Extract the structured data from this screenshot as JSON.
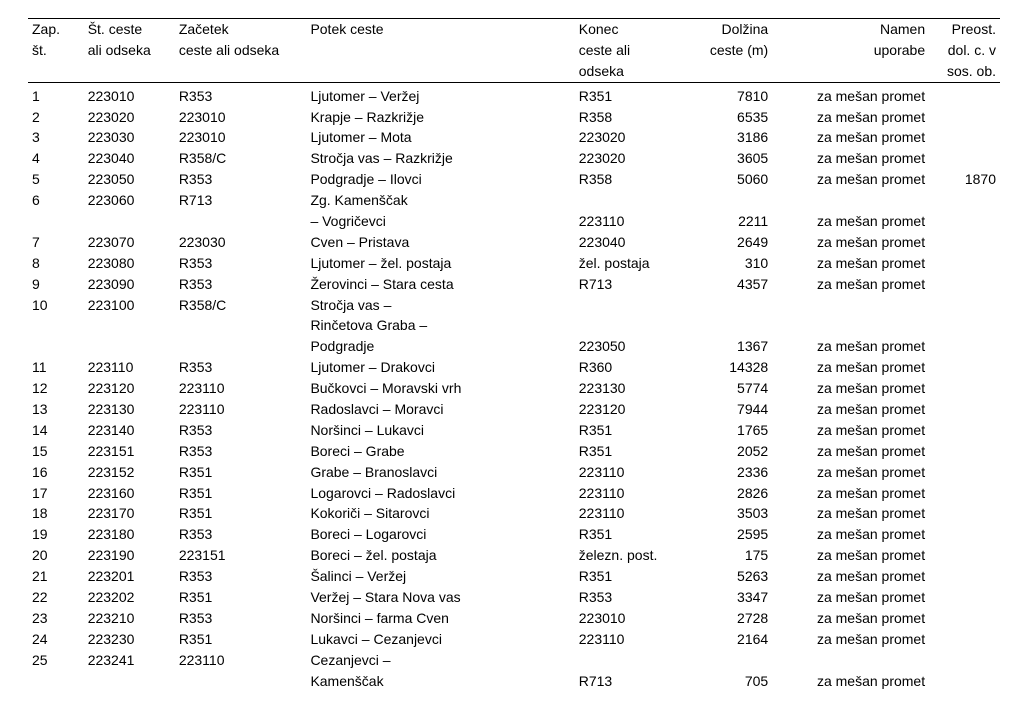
{
  "columns": {
    "c1": [
      "Zap.",
      "št."
    ],
    "c2": [
      "Št. ceste",
      "ali odseka"
    ],
    "c3": [
      "Začetek",
      "ceste ali odseka"
    ],
    "c4": [
      "Potek ceste",
      ""
    ],
    "c5": [
      "Konec",
      "ceste ali",
      "odseka"
    ],
    "c6": [
      "Dolžina",
      "ceste (m)"
    ],
    "c7": [
      "Namen",
      "uporabe"
    ],
    "c8": [
      "Preost.",
      "dol. c. v",
      "sos. ob."
    ]
  },
  "rows": [
    {
      "n": "1",
      "code": "223010",
      "start": "R353",
      "route": "Ljutomer – Veržej",
      "end": "R351",
      "len": "7810",
      "use": "za mešan promet",
      "rem": ""
    },
    {
      "n": "2",
      "code": "223020",
      "start": "223010",
      "route": "Krapje – Razkrižje",
      "end": "R358",
      "len": "6535",
      "use": "za mešan promet",
      "rem": ""
    },
    {
      "n": "3",
      "code": "223030",
      "start": "223010",
      "route": "Ljutomer – Mota",
      "end": "223020",
      "len": "3186",
      "use": "za mešan promet",
      "rem": ""
    },
    {
      "n": "4",
      "code": "223040",
      "start": "R358/C",
      "route": "Stročja vas – Razkrižje",
      "end": "223020",
      "len": "3605",
      "use": "za mešan promet",
      "rem": ""
    },
    {
      "n": "5",
      "code": "223050",
      "start": "R353",
      "route": "Podgradje – Ilovci",
      "end": "R358",
      "len": "5060",
      "use": "za mešan promet",
      "rem": "1870"
    },
    {
      "n": "6",
      "code": "223060",
      "start": "R713",
      "route": "Zg. Kamenščak\n– Vogričevci",
      "end": "223110",
      "len": "2211",
      "use": "za mešan promet",
      "rem": ""
    },
    {
      "n": "7",
      "code": "223070",
      "start": "223030",
      "route": "Cven – Pristava",
      "end": "223040",
      "len": "2649",
      "use": "za mešan promet",
      "rem": ""
    },
    {
      "n": "8",
      "code": "223080",
      "start": "R353",
      "route": "Ljutomer – žel. postaja",
      "end": "žel. postaja",
      "len": "310",
      "use": "za mešan promet",
      "rem": ""
    },
    {
      "n": "9",
      "code": "223090",
      "start": "R353",
      "route": "Žerovinci – Stara cesta",
      "end": "R713",
      "len": "4357",
      "use": "za mešan promet",
      "rem": ""
    },
    {
      "n": "10",
      "code": "223100",
      "start": "R358/C",
      "route": "Stročja vas –\nRinčetova Graba –\nPodgradje",
      "end": "223050",
      "len": "1367",
      "use": "za mešan promet",
      "rem": ""
    },
    {
      "n": "11",
      "code": "223110",
      "start": "R353",
      "route": "Ljutomer – Drakovci",
      "end": "R360",
      "len": "14328",
      "use": "za mešan promet",
      "rem": ""
    },
    {
      "n": "12",
      "code": "223120",
      "start": "223110",
      "route": "Bučkovci – Moravski vrh",
      "end": "223130",
      "len": "5774",
      "use": "za mešan promet",
      "rem": ""
    },
    {
      "n": "13",
      "code": "223130",
      "start": "223110",
      "route": "Radoslavci – Moravci",
      "end": "223120",
      "len": "7944",
      "use": "za mešan promet",
      "rem": ""
    },
    {
      "n": "14",
      "code": "223140",
      "start": "R353",
      "route": "Noršinci – Lukavci",
      "end": "R351",
      "len": "1765",
      "use": "za mešan promet",
      "rem": ""
    },
    {
      "n": "15",
      "code": "223151",
      "start": "R353",
      "route": "Boreci – Grabe",
      "end": "R351",
      "len": "2052",
      "use": "za mešan promet",
      "rem": ""
    },
    {
      "n": "16",
      "code": "223152",
      "start": "R351",
      "route": "Grabe – Branoslavci",
      "end": "223110",
      "len": "2336",
      "use": "za mešan promet",
      "rem": ""
    },
    {
      "n": "17",
      "code": "223160",
      "start": "R351",
      "route": "Logarovci – Radoslavci",
      "end": "223110",
      "len": "2826",
      "use": "za mešan promet",
      "rem": ""
    },
    {
      "n": "18",
      "code": "223170",
      "start": "R351",
      "route": "Kokoriči – Sitarovci",
      "end": "223110",
      "len": "3503",
      "use": "za mešan promet",
      "rem": ""
    },
    {
      "n": "19",
      "code": "223180",
      "start": "R353",
      "route": "Boreci – Logarovci",
      "end": "R351",
      "len": "2595",
      "use": "za mešan promet",
      "rem": ""
    },
    {
      "n": "20",
      "code": "223190",
      "start": "223151",
      "route": "Boreci – žel. postaja",
      "end": "železn. post.",
      "len": "175",
      "use": "za mešan promet",
      "rem": ""
    },
    {
      "n": "21",
      "code": "223201",
      "start": "R353",
      "route": "Šalinci – Veržej",
      "end": "R351",
      "len": "5263",
      "use": "za mešan promet",
      "rem": ""
    },
    {
      "n": "22",
      "code": "223202",
      "start": "R351",
      "route": "Veržej – Stara Nova vas",
      "end": "R353",
      "len": "3347",
      "use": "za mešan promet",
      "rem": ""
    },
    {
      "n": "23",
      "code": "223210",
      "start": "R353",
      "route": "Noršinci – farma Cven",
      "end": "223010",
      "len": "2728",
      "use": "za mešan promet",
      "rem": ""
    },
    {
      "n": "24",
      "code": "223230",
      "start": "R351",
      "route": "Lukavci – Cezanjevci",
      "end": "223110",
      "len": "2164",
      "use": "za mešan promet",
      "rem": ""
    },
    {
      "n": "25",
      "code": "223241",
      "start": "223110",
      "route": "Cezanjevci –\nKamenščak",
      "end": "R713",
      "len": "705",
      "use": "za mešan promet",
      "rem": ""
    }
  ]
}
